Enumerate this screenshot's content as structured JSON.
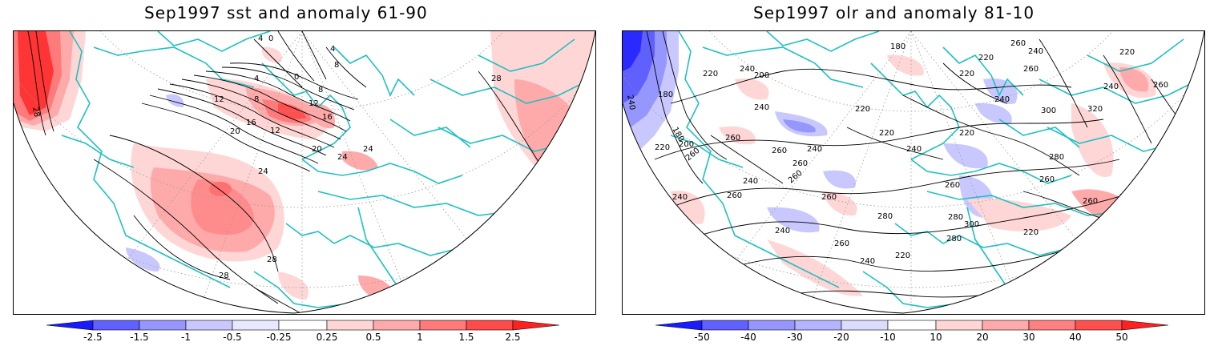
{
  "panels": [
    {
      "id": "sst",
      "title": "Sep1997 sst and anomaly 61-90",
      "contour_labels": [
        "28",
        "4",
        "0",
        "4",
        "8",
        "0",
        "4",
        "8",
        "12",
        "8",
        "12",
        "16",
        "16",
        "12",
        "20",
        "20",
        "24",
        "24",
        "24",
        "28",
        "28"
      ],
      "colorbar": {
        "labels": [
          "-2.5",
          "-1.5",
          "-1",
          "-0.5",
          "-0.25",
          "0.25",
          "0.5",
          "1",
          "1.5",
          "2.5"
        ],
        "colors": [
          "#1a1aff",
          "#6060ff",
          "#9696ff",
          "#c8c8ff",
          "#e8e8ff",
          "#ffffff",
          "#ffd6d6",
          "#ffaaaa",
          "#ff7a7a",
          "#ff4b4b",
          "#ff2020"
        ]
      }
    },
    {
      "id": "olr",
      "title": "Sep1997 olr and anomaly 81-10",
      "contour_labels": [
        "240",
        "180",
        "180",
        "220",
        "200",
        "260",
        "220",
        "240",
        "240",
        "260",
        "200",
        "220",
        "240",
        "260",
        "260",
        "260",
        "220",
        "240",
        "260",
        "240",
        "260",
        "280",
        "300",
        "280",
        "280",
        "260",
        "240",
        "220",
        "240",
        "220",
        "240",
        "260",
        "180",
        "260",
        "220",
        "240",
        "220",
        "240",
        "220",
        "300",
        "320",
        "280",
        "260",
        "240",
        "260",
        "280",
        "260",
        "260",
        "220",
        "260"
      ],
      "colorbar": {
        "labels": [
          "-50",
          "-40",
          "-30",
          "-20",
          "-10",
          "10",
          "20",
          "30",
          "40",
          "50"
        ],
        "colors": [
          "#1a1aff",
          "#6060ff",
          "#9696ff",
          "#b4b4ff",
          "#dcdcff",
          "#ffffff",
          "#ffd6d6",
          "#ffaaaa",
          "#ff8080",
          "#ff5050",
          "#ff2020"
        ]
      }
    }
  ],
  "colors": {
    "coast": "#20c0c0",
    "contour": "#000000",
    "grid": "#999999"
  }
}
